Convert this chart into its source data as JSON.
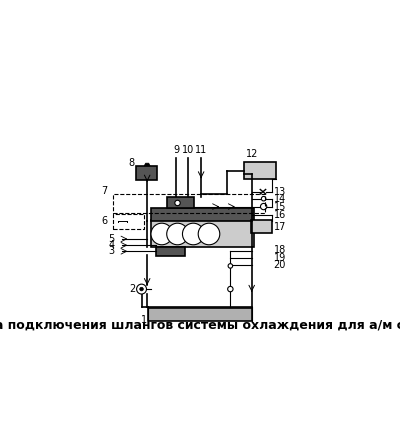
{
  "title": "Схема подключения шлангов системы охлаждения для а/м с МКП",
  "title_fontsize": 9,
  "bg_color": "#ffffff",
  "line_color": "#000000",
  "gray_fill": "#b0b0b0",
  "dark_fill": "#555555",
  "light_gray": "#cccccc",
  "dashed_color": "#000000"
}
